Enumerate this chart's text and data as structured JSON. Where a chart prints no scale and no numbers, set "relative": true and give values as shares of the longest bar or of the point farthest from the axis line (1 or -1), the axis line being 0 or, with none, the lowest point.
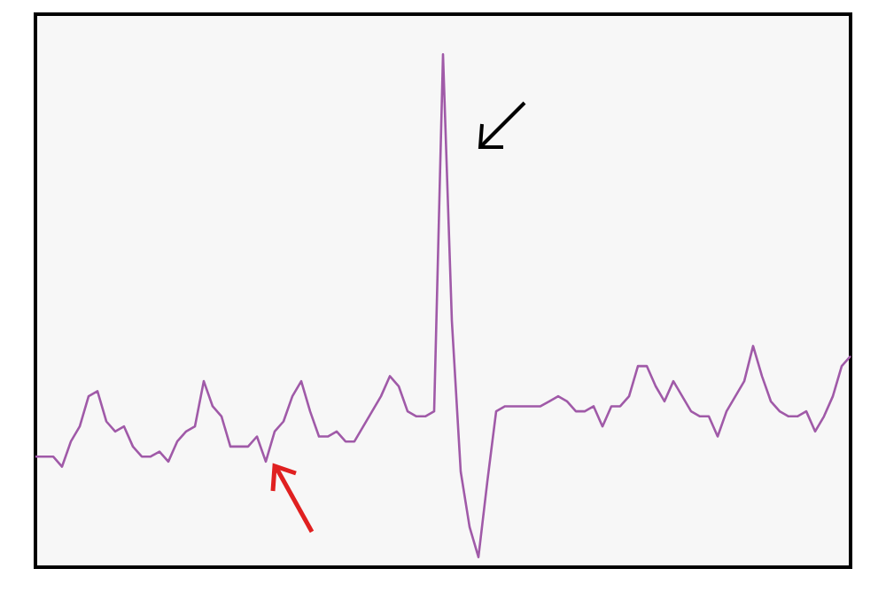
{
  "chart_data": {
    "type": "line",
    "relative": true,
    "line_style": "solid",
    "categories": [
      null,
      null,
      null,
      null,
      null,
      null,
      null,
      null,
      null,
      null,
      null,
      null,
      null,
      null,
      null,
      null,
      null,
      null,
      null,
      null,
      null,
      null,
      null,
      null,
      null,
      null,
      null,
      null,
      null,
      null,
      null,
      null,
      null,
      null,
      null,
      null,
      null,
      null,
      null,
      null,
      null,
      null,
      null,
      null,
      null,
      null,
      null,
      null,
      null,
      null,
      null,
      null,
      null,
      null,
      null,
      null,
      null,
      null,
      null,
      null,
      null,
      null,
      null,
      null,
      null,
      null,
      null,
      null,
      null,
      null,
      null,
      null,
      null,
      null,
      null,
      null,
      null,
      null,
      null,
      null,
      null,
      null,
      null,
      null,
      null,
      null,
      null,
      null,
      null,
      null,
      null,
      null,
      null
    ],
    "series": [
      {
        "color": "#a05aa8",
        "values": [
          0.2,
          0.2,
          0.2,
          0.18,
          0.23,
          0.26,
          0.32,
          0.33,
          0.27,
          0.25,
          0.26,
          0.22,
          0.2,
          0.2,
          0.21,
          0.19,
          0.23,
          0.25,
          0.26,
          0.35,
          0.3,
          0.28,
          0.22,
          0.22,
          0.22,
          0.24,
          0.19,
          0.25,
          0.27,
          0.32,
          0.35,
          0.29,
          0.24,
          0.24,
          0.25,
          0.23,
          0.23,
          0.26,
          0.29,
          0.32,
          0.36,
          0.34,
          0.29,
          0.28,
          0.28,
          0.29,
          1,
          0.47,
          0.17,
          0.06,
          0,
          0.15,
          0.29,
          0.3,
          0.3,
          0.3,
          0.3,
          0.3,
          0.31,
          0.32,
          0.31,
          0.29,
          0.29,
          0.3,
          0.26,
          0.3,
          0.3,
          0.32,
          0.38,
          0.38,
          0.34,
          0.31,
          0.35,
          0.32,
          0.29,
          0.28,
          0.28,
          0.24,
          0.29,
          0.32,
          0.35,
          0.42,
          0.36,
          0.31,
          0.29,
          0.28,
          0.28,
          0.29,
          0.25,
          0.28,
          0.32,
          0.38,
          0.4
        ]
      }
    ]
  }
}
